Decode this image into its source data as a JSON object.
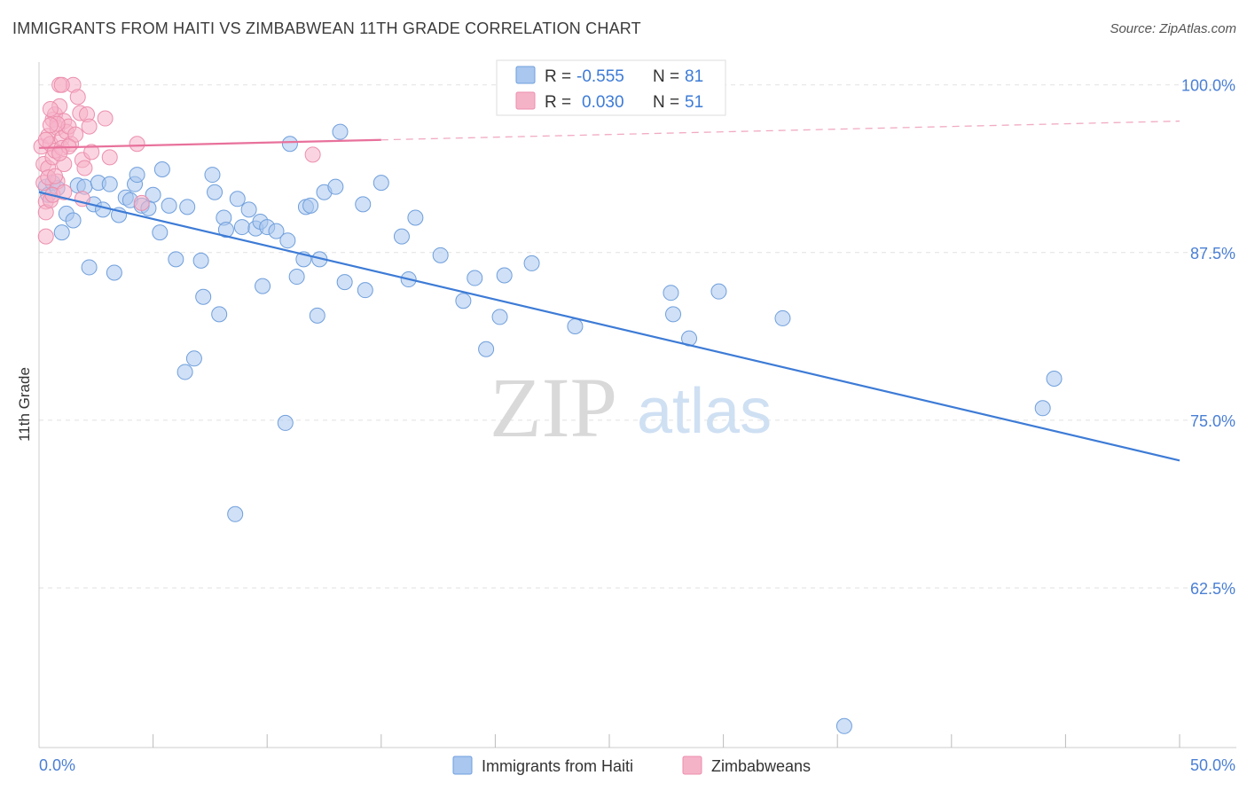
{
  "header": {
    "title": "IMMIGRANTS FROM HAITI VS ZIMBABWEAN 11TH GRADE CORRELATION CHART",
    "source": "Source: ZipAtlas.com"
  },
  "legend_box": {
    "rows": [
      {
        "r_label": "R =",
        "r_value": "-0.555",
        "n_label": "N =",
        "n_value": "81",
        "color": "#a9c7ef"
      },
      {
        "r_label": "R =",
        "r_value": "0.030",
        "n_label": "N =",
        "n_value": "51",
        "color": "#f5b3c8"
      }
    ]
  },
  "watermark": {
    "zip": "ZIP",
    "atlas": "atlas"
  },
  "chart_data": {
    "type": "scatter",
    "title": "IMMIGRANTS FROM HAITI VS ZIMBABWEAN 11TH GRADE CORRELATION CHART",
    "xlabel": "",
    "ylabel": "11th Grade",
    "xlim": [
      0,
      50
    ],
    "ylim": [
      50.6,
      101.7
    ],
    "x_tick_labels": [
      {
        "value": 0,
        "label": "0.0%"
      },
      {
        "value": 50,
        "label": "50.0%"
      }
    ],
    "x_minor_ticks": [
      5,
      10,
      15,
      20,
      25,
      30,
      35,
      40,
      45
    ],
    "y_ticks": [
      {
        "value": 100,
        "label": "100.0%"
      },
      {
        "value": 87.5,
        "label": "87.5%"
      },
      {
        "value": 75,
        "label": "75.0%"
      },
      {
        "value": 62.5,
        "label": "62.5%"
      }
    ],
    "grid": true,
    "legend_position": "bottom-center",
    "series": [
      {
        "name": "Immigrants from Haiti",
        "color": "#a9c7ef",
        "stroke": "#6f9fdc",
        "trend": {
          "x0": 0,
          "y0": 92.0,
          "x1": 50,
          "y1": 72.0,
          "solid_until": 50,
          "color": "#3d7bd6"
        },
        "points": [
          [
            0.3,
            92.4
          ],
          [
            0.4,
            91.8
          ],
          [
            0.6,
            92.7
          ],
          [
            0.8,
            92.3
          ],
          [
            1.0,
            89.0
          ],
          [
            1.2,
            90.4
          ],
          [
            1.5,
            89.9
          ],
          [
            1.7,
            92.5
          ],
          [
            2.0,
            92.4
          ],
          [
            2.2,
            86.4
          ],
          [
            2.4,
            91.1
          ],
          [
            2.6,
            92.7
          ],
          [
            2.8,
            90.7
          ],
          [
            3.1,
            92.6
          ],
          [
            3.3,
            86.0
          ],
          [
            3.5,
            90.3
          ],
          [
            3.8,
            91.6
          ],
          [
            4.0,
            91.4
          ],
          [
            4.2,
            92.6
          ],
          [
            4.3,
            93.3
          ],
          [
            4.5,
            91.0
          ],
          [
            4.8,
            90.8
          ],
          [
            5.0,
            91.8
          ],
          [
            5.3,
            89.0
          ],
          [
            5.4,
            93.7
          ],
          [
            5.7,
            91.0
          ],
          [
            6.0,
            87.0
          ],
          [
            6.4,
            78.6
          ],
          [
            6.5,
            90.9
          ],
          [
            6.8,
            79.6
          ],
          [
            7.1,
            86.9
          ],
          [
            7.2,
            84.2
          ],
          [
            7.6,
            93.3
          ],
          [
            7.7,
            92.0
          ],
          [
            7.9,
            82.9
          ],
          [
            8.1,
            90.1
          ],
          [
            8.2,
            89.2
          ],
          [
            8.6,
            68.0
          ],
          [
            8.7,
            91.5
          ],
          [
            8.9,
            89.4
          ],
          [
            9.2,
            90.7
          ],
          [
            9.5,
            89.3
          ],
          [
            9.7,
            89.8
          ],
          [
            9.8,
            85.0
          ],
          [
            10.0,
            89.4
          ],
          [
            10.4,
            89.1
          ],
          [
            10.8,
            74.8
          ],
          [
            10.9,
            88.4
          ],
          [
            11.0,
            95.6
          ],
          [
            11.3,
            85.7
          ],
          [
            11.6,
            87.0
          ],
          [
            11.7,
            90.9
          ],
          [
            11.9,
            91.0
          ],
          [
            12.2,
            82.8
          ],
          [
            12.3,
            87.0
          ],
          [
            12.5,
            92.0
          ],
          [
            13.0,
            92.4
          ],
          [
            13.2,
            96.5
          ],
          [
            13.4,
            85.3
          ],
          [
            14.2,
            91.1
          ],
          [
            14.3,
            84.7
          ],
          [
            15.0,
            92.7
          ],
          [
            15.9,
            88.7
          ],
          [
            16.2,
            85.5
          ],
          [
            16.5,
            90.1
          ],
          [
            17.6,
            87.3
          ],
          [
            18.6,
            83.9
          ],
          [
            19.1,
            85.6
          ],
          [
            19.6,
            80.3
          ],
          [
            20.2,
            82.7
          ],
          [
            20.4,
            85.8
          ],
          [
            21.6,
            86.7
          ],
          [
            23.5,
            82.0
          ],
          [
            27.7,
            84.5
          ],
          [
            27.8,
            82.9
          ],
          [
            28.5,
            81.1
          ],
          [
            29.8,
            84.6
          ],
          [
            32.6,
            82.6
          ],
          [
            44.5,
            78.1
          ],
          [
            44.0,
            75.9
          ],
          [
            35.3,
            52.2
          ]
        ]
      },
      {
        "name": "Zimbabweans",
        "color": "#f5b3c8",
        "stroke": "#ec8fad",
        "trend": {
          "x0": 0,
          "y0": 95.3,
          "x1": 50,
          "y1": 97.3,
          "solid_until": 15,
          "color": "#e8719b"
        },
        "points": [
          [
            0.1,
            95.4
          ],
          [
            0.2,
            94.1
          ],
          [
            0.2,
            92.7
          ],
          [
            0.3,
            91.3
          ],
          [
            0.3,
            90.5
          ],
          [
            0.3,
            88.7
          ],
          [
            0.4,
            96.2
          ],
          [
            0.4,
            93.8
          ],
          [
            0.5,
            95.6
          ],
          [
            0.5,
            91.4
          ],
          [
            0.6,
            97.4
          ],
          [
            0.6,
            94.6
          ],
          [
            0.7,
            97.8
          ],
          [
            0.7,
            95.1
          ],
          [
            0.8,
            96.8
          ],
          [
            0.8,
            92.8
          ],
          [
            0.9,
            98.4
          ],
          [
            1.0,
            96.0
          ],
          [
            1.1,
            97.3
          ],
          [
            1.2,
            96.5
          ],
          [
            1.0,
            95.3
          ],
          [
            1.1,
            94.1
          ],
          [
            1.3,
            96.9
          ],
          [
            1.4,
            95.6
          ],
          [
            1.5,
            100.0
          ],
          [
            1.7,
            99.1
          ],
          [
            1.8,
            97.9
          ],
          [
            1.9,
            94.4
          ],
          [
            2.0,
            93.8
          ],
          [
            2.1,
            97.8
          ],
          [
            2.2,
            96.9
          ],
          [
            1.9,
            91.5
          ],
          [
            3.1,
            94.6
          ],
          [
            4.5,
            91.2
          ],
          [
            0.4,
            93.1
          ],
          [
            0.6,
            91.8
          ],
          [
            0.9,
            100.0
          ],
          [
            0.8,
            97.1
          ],
          [
            1.6,
            96.3
          ],
          [
            1.1,
            92.0
          ],
          [
            0.5,
            98.2
          ],
          [
            0.7,
            93.2
          ],
          [
            1.3,
            95.4
          ],
          [
            2.3,
            95.0
          ],
          [
            0.9,
            94.9
          ],
          [
            0.5,
            97.0
          ],
          [
            0.3,
            95.9
          ],
          [
            4.3,
            95.6
          ],
          [
            12.0,
            94.8
          ],
          [
            2.9,
            97.5
          ],
          [
            1.0,
            100.0
          ]
        ]
      }
    ]
  },
  "bottom_legend": [
    {
      "label": "Immigrants from Haiti",
      "color": "#a9c7ef"
    },
    {
      "label": "Zimbabweans",
      "color": "#f5b3c8"
    }
  ]
}
